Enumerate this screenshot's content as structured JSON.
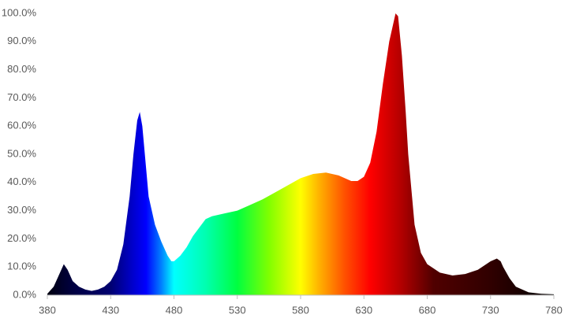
{
  "chart_data": {
    "type": "area",
    "x": [
      380,
      385,
      390,
      393,
      396,
      400,
      405,
      410,
      415,
      420,
      425,
      430,
      435,
      440,
      445,
      448,
      451,
      453,
      455,
      458,
      460,
      465,
      470,
      475,
      478,
      480,
      485,
      490,
      495,
      500,
      505,
      510,
      520,
      530,
      540,
      550,
      560,
      570,
      580,
      590,
      600,
      610,
      620,
      625,
      630,
      635,
      640,
      645,
      650,
      655,
      657,
      660,
      663,
      665,
      668,
      670,
      675,
      680,
      690,
      700,
      710,
      720,
      730,
      735,
      738,
      740,
      745,
      750,
      760,
      770,
      780
    ],
    "values": [
      0.5,
      3,
      8,
      11,
      9,
      5,
      3,
      2,
      1.5,
      2,
      3,
      5,
      9,
      18,
      35,
      50,
      62,
      65,
      60,
      45,
      35,
      25,
      19,
      14,
      12,
      12,
      14,
      17,
      21,
      24,
      27,
      28,
      29,
      30,
      32,
      34,
      36.5,
      39,
      41.5,
      43,
      43.5,
      42.5,
      40.5,
      40.5,
      42,
      47,
      58,
      75,
      90,
      100,
      99,
      85,
      65,
      50,
      35,
      25,
      15,
      11,
      8,
      7,
      7.5,
      9,
      12,
      13,
      12,
      10,
      6,
      3,
      1,
      0.5,
      0.3
    ],
    "xlim": [
      380,
      780
    ],
    "ylim": [
      0,
      100
    ],
    "xticks": [
      380,
      430,
      480,
      530,
      580,
      630,
      680,
      730,
      780
    ],
    "yticks": [
      {
        "value": 0,
        "label": "0.0%"
      },
      {
        "value": 10,
        "label": "10.0%"
      },
      {
        "value": 20,
        "label": "20.0%"
      },
      {
        "value": 30,
        "label": "30.0%"
      },
      {
        "value": 40,
        "label": "40.0%"
      },
      {
        "value": 50,
        "label": "50.0%"
      },
      {
        "value": 60,
        "label": "60.0%"
      },
      {
        "value": 70,
        "label": "70.0%"
      },
      {
        "value": 80,
        "label": "80.0%"
      },
      {
        "value": 90,
        "label": "90.0%"
      },
      {
        "value": 100,
        "label": "100.0%"
      }
    ],
    "grid": false,
    "fill_gradient": [
      {
        "x": 380,
        "color": "#000010"
      },
      {
        "x": 400,
        "color": "#000040"
      },
      {
        "x": 430,
        "color": "#000070"
      },
      {
        "x": 445,
        "color": "#0000c0"
      },
      {
        "x": 458,
        "color": "#0000ff"
      },
      {
        "x": 470,
        "color": "#0080ff"
      },
      {
        "x": 480,
        "color": "#00ffff"
      },
      {
        "x": 505,
        "color": "#00ffb0"
      },
      {
        "x": 530,
        "color": "#00ff40"
      },
      {
        "x": 555,
        "color": "#80ff00"
      },
      {
        "x": 580,
        "color": "#ffff00"
      },
      {
        "x": 595,
        "color": "#ffb000"
      },
      {
        "x": 615,
        "color": "#ff5000"
      },
      {
        "x": 635,
        "color": "#ff0000"
      },
      {
        "x": 660,
        "color": "#b00000"
      },
      {
        "x": 685,
        "color": "#500000"
      },
      {
        "x": 730,
        "color": "#300000"
      },
      {
        "x": 780,
        "color": "#000000"
      }
    ]
  }
}
